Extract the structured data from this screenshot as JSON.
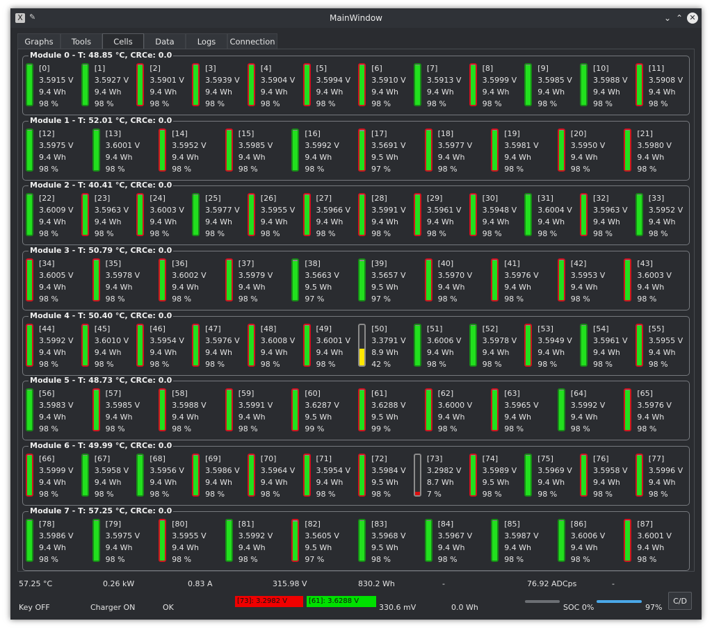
{
  "window": {
    "title": "MainWindow"
  },
  "tabs": [
    {
      "label": "Graphs"
    },
    {
      "label": "Tools"
    },
    {
      "label": "Cells",
      "active": true
    },
    {
      "label": "Data"
    },
    {
      "label": "Logs"
    },
    {
      "label": "Connection"
    }
  ],
  "modules": [
    {
      "title": "Module 0 - T: 48.85 °C, CRCe: 0.0",
      "cells": [
        {
          "id": "[0]",
          "v": "3.5915 V",
          "wh": "9.4 Wh",
          "pct": "98 %",
          "ok": true
        },
        {
          "id": "[1]",
          "v": "3.5927 V",
          "wh": "9.4 Wh",
          "pct": "98 %",
          "ok": true
        },
        {
          "id": "[2]",
          "v": "3.5901 V",
          "wh": "9.4 Wh",
          "pct": "98 %",
          "ok": false
        },
        {
          "id": "[3]",
          "v": "3.5939 V",
          "wh": "9.4 Wh",
          "pct": "98 %",
          "ok": false
        },
        {
          "id": "[4]",
          "v": "3.5904 V",
          "wh": "9.4 Wh",
          "pct": "98 %",
          "ok": false
        },
        {
          "id": "[5]",
          "v": "3.5994 V",
          "wh": "9.4 Wh",
          "pct": "98 %",
          "ok": false
        },
        {
          "id": "[6]",
          "v": "3.5910 V",
          "wh": "9.4 Wh",
          "pct": "98 %",
          "ok": false
        },
        {
          "id": "[7]",
          "v": "3.5913 V",
          "wh": "9.4 Wh",
          "pct": "98 %",
          "ok": true
        },
        {
          "id": "[8]",
          "v": "3.5999 V",
          "wh": "9.4 Wh",
          "pct": "98 %",
          "ok": false
        },
        {
          "id": "[9]",
          "v": "3.5985 V",
          "wh": "9.4 Wh",
          "pct": "98 %",
          "ok": true
        },
        {
          "id": "[10]",
          "v": "3.5988 V",
          "wh": "9.4 Wh",
          "pct": "98 %",
          "ok": true
        },
        {
          "id": "[11]",
          "v": "3.5908 V",
          "wh": "9.4 Wh",
          "pct": "98 %",
          "ok": false
        }
      ]
    },
    {
      "title": "Module 1 - T: 52.01 °C, CRCe: 0.0",
      "cells": [
        {
          "id": "[12]",
          "v": "3.5975 V",
          "wh": "9.4 Wh",
          "pct": "98 %",
          "ok": true
        },
        {
          "id": "[13]",
          "v": "3.6001 V",
          "wh": "9.4 Wh",
          "pct": "98 %",
          "ok": true
        },
        {
          "id": "[14]",
          "v": "3.5952 V",
          "wh": "9.4 Wh",
          "pct": "98 %",
          "ok": false
        },
        {
          "id": "[15]",
          "v": "3.5985 V",
          "wh": "9.4 Wh",
          "pct": "98 %",
          "ok": false
        },
        {
          "id": "[16]",
          "v": "3.5992 V",
          "wh": "9.4 Wh",
          "pct": "98 %",
          "ok": true
        },
        {
          "id": "[17]",
          "v": "3.5691 V",
          "wh": "9.5 Wh",
          "pct": "97 %",
          "ok": false
        },
        {
          "id": "[18]",
          "v": "3.5977 V",
          "wh": "9.4 Wh",
          "pct": "98 %",
          "ok": false
        },
        {
          "id": "[19]",
          "v": "3.5981 V",
          "wh": "9.4 Wh",
          "pct": "98 %",
          "ok": false
        },
        {
          "id": "[20]",
          "v": "3.5950 V",
          "wh": "9.4 Wh",
          "pct": "98 %",
          "ok": false
        },
        {
          "id": "[21]",
          "v": "3.5980 V",
          "wh": "9.4 Wh",
          "pct": "98 %",
          "ok": false
        }
      ]
    },
    {
      "title": "Module 2 - T: 40.41 °C, CRCe: 0.0",
      "cells": [
        {
          "id": "[22]",
          "v": "3.6009 V",
          "wh": "9.4 Wh",
          "pct": "98 %",
          "ok": true
        },
        {
          "id": "[23]",
          "v": "3.5963 V",
          "wh": "9.4 Wh",
          "pct": "98 %",
          "ok": false
        },
        {
          "id": "[24]",
          "v": "3.6003 V",
          "wh": "9.4 Wh",
          "pct": "98 %",
          "ok": false
        },
        {
          "id": "[25]",
          "v": "3.5977 V",
          "wh": "9.4 Wh",
          "pct": "98 %",
          "ok": true
        },
        {
          "id": "[26]",
          "v": "3.5955 V",
          "wh": "9.4 Wh",
          "pct": "98 %",
          "ok": false
        },
        {
          "id": "[27]",
          "v": "3.5966 V",
          "wh": "9.4 Wh",
          "pct": "98 %",
          "ok": false
        },
        {
          "id": "[28]",
          "v": "3.5991 V",
          "wh": "9.4 Wh",
          "pct": "98 %",
          "ok": false
        },
        {
          "id": "[29]",
          "v": "3.5961 V",
          "wh": "9.4 Wh",
          "pct": "98 %",
          "ok": false
        },
        {
          "id": "[30]",
          "v": "3.5948 V",
          "wh": "9.4 Wh",
          "pct": "98 %",
          "ok": false
        },
        {
          "id": "[31]",
          "v": "3.6004 V",
          "wh": "9.4 Wh",
          "pct": "98 %",
          "ok": true
        },
        {
          "id": "[32]",
          "v": "3.5963 V",
          "wh": "9.4 Wh",
          "pct": "98 %",
          "ok": false
        },
        {
          "id": "[33]",
          "v": "3.5952 V",
          "wh": "9.4 Wh",
          "pct": "98 %",
          "ok": true
        }
      ]
    },
    {
      "title": "Module 3 - T: 50.79 °C, CRCe: 0.0",
      "cells": [
        {
          "id": "[34]",
          "v": "3.6005 V",
          "wh": "9.4 Wh",
          "pct": "98 %",
          "ok": false
        },
        {
          "id": "[35]",
          "v": "3.5978 V",
          "wh": "9.4 Wh",
          "pct": "98 %",
          "ok": false
        },
        {
          "id": "[36]",
          "v": "3.6002 V",
          "wh": "9.4 Wh",
          "pct": "98 %",
          "ok": false
        },
        {
          "id": "[37]",
          "v": "3.5979 V",
          "wh": "9.4 Wh",
          "pct": "98 %",
          "ok": false
        },
        {
          "id": "[38]",
          "v": "3.5663 V",
          "wh": "9.5 Wh",
          "pct": "97 %",
          "ok": true
        },
        {
          "id": "[39]",
          "v": "3.5657 V",
          "wh": "9.5 Wh",
          "pct": "97 %",
          "ok": true
        },
        {
          "id": "[40]",
          "v": "3.5970 V",
          "wh": "9.4 Wh",
          "pct": "98 %",
          "ok": false
        },
        {
          "id": "[41]",
          "v": "3.5976 V",
          "wh": "9.4 Wh",
          "pct": "98 %",
          "ok": false
        },
        {
          "id": "[42]",
          "v": "3.5953 V",
          "wh": "9.4 Wh",
          "pct": "98 %",
          "ok": false
        },
        {
          "id": "[43]",
          "v": "3.6003 V",
          "wh": "9.4 Wh",
          "pct": "98 %",
          "ok": false
        }
      ]
    },
    {
      "title": "Module 4 - T: 50.40 °C, CRCe: 0.0",
      "cells": [
        {
          "id": "[44]",
          "v": "3.5992 V",
          "wh": "9.4 Wh",
          "pct": "98 %",
          "ok": false
        },
        {
          "id": "[45]",
          "v": "3.6010 V",
          "wh": "9.4 Wh",
          "pct": "98 %",
          "ok": false
        },
        {
          "id": "[46]",
          "v": "3.5954 V",
          "wh": "9.4 Wh",
          "pct": "98 %",
          "ok": false
        },
        {
          "id": "[47]",
          "v": "3.5976 V",
          "wh": "9.4 Wh",
          "pct": "98 %",
          "ok": false
        },
        {
          "id": "[48]",
          "v": "3.6008 V",
          "wh": "9.4 Wh",
          "pct": "98 %",
          "ok": false
        },
        {
          "id": "[49]",
          "v": "3.6001 V",
          "wh": "9.4 Wh",
          "pct": "98 %",
          "ok": false
        },
        {
          "id": "[50]",
          "v": "3.3791 V",
          "wh": "8.9 Wh",
          "pct": "42 %",
          "ok": false,
          "state": "low"
        },
        {
          "id": "[51]",
          "v": "3.6006 V",
          "wh": "9.4 Wh",
          "pct": "98 %",
          "ok": true
        },
        {
          "id": "[52]",
          "v": "3.5978 V",
          "wh": "9.4 Wh",
          "pct": "98 %",
          "ok": true
        },
        {
          "id": "[53]",
          "v": "3.5949 V",
          "wh": "9.4 Wh",
          "pct": "98 %",
          "ok": false
        },
        {
          "id": "[54]",
          "v": "3.5961 V",
          "wh": "9.4 Wh",
          "pct": "98 %",
          "ok": true
        },
        {
          "id": "[55]",
          "v": "3.5955 V",
          "wh": "9.4 Wh",
          "pct": "98 %",
          "ok": false
        }
      ]
    },
    {
      "title": "Module 5 - T: 48.73 °C, CRCe: 0.0",
      "cells": [
        {
          "id": "[56]",
          "v": "3.5983 V",
          "wh": "9.4 Wh",
          "pct": "98 %",
          "ok": true
        },
        {
          "id": "[57]",
          "v": "3.5985 V",
          "wh": "9.4 Wh",
          "pct": "98 %",
          "ok": false
        },
        {
          "id": "[58]",
          "v": "3.5988 V",
          "wh": "9.4 Wh",
          "pct": "98 %",
          "ok": false
        },
        {
          "id": "[59]",
          "v": "3.5991 V",
          "wh": "9.4 Wh",
          "pct": "98 %",
          "ok": false
        },
        {
          "id": "[60]",
          "v": "3.6287 V",
          "wh": "9.5 Wh",
          "pct": "99 %",
          "ok": false
        },
        {
          "id": "[61]",
          "v": "3.6288 V",
          "wh": "9.5 Wh",
          "pct": "99 %",
          "ok": false
        },
        {
          "id": "[62]",
          "v": "3.6000 V",
          "wh": "9.4 Wh",
          "pct": "98 %",
          "ok": false
        },
        {
          "id": "[63]",
          "v": "3.5965 V",
          "wh": "9.4 Wh",
          "pct": "98 %",
          "ok": false
        },
        {
          "id": "[64]",
          "v": "3.5992 V",
          "wh": "9.4 Wh",
          "pct": "98 %",
          "ok": true
        },
        {
          "id": "[65]",
          "v": "3.5976 V",
          "wh": "9.4 Wh",
          "pct": "98 %",
          "ok": false
        }
      ]
    },
    {
      "title": "Module 6 - T: 49.99 °C, CRCe: 0.0",
      "cells": [
        {
          "id": "[66]",
          "v": "3.5999 V",
          "wh": "9.4 Wh",
          "pct": "98 %",
          "ok": false
        },
        {
          "id": "[67]",
          "v": "3.5958 V",
          "wh": "9.4 Wh",
          "pct": "98 %",
          "ok": true
        },
        {
          "id": "[68]",
          "v": "3.5956 V",
          "wh": "9.4 Wh",
          "pct": "98 %",
          "ok": true
        },
        {
          "id": "[69]",
          "v": "3.5986 V",
          "wh": "9.4 Wh",
          "pct": "98 %",
          "ok": false
        },
        {
          "id": "[70]",
          "v": "3.5964 V",
          "wh": "9.4 Wh",
          "pct": "98 %",
          "ok": false
        },
        {
          "id": "[71]",
          "v": "3.5954 V",
          "wh": "9.4 Wh",
          "pct": "98 %",
          "ok": false
        },
        {
          "id": "[72]",
          "v": "3.5984 V",
          "wh": "9.5 Wh",
          "pct": "98 %",
          "ok": false
        },
        {
          "id": "[73]",
          "v": "3.2982 V",
          "wh": "8.7 Wh",
          "pct": "7 %",
          "ok": false,
          "state": "critical"
        },
        {
          "id": "[74]",
          "v": "3.5989 V",
          "wh": "9.5 Wh",
          "pct": "98 %",
          "ok": false
        },
        {
          "id": "[75]",
          "v": "3.5969 V",
          "wh": "9.4 Wh",
          "pct": "98 %",
          "ok": true
        },
        {
          "id": "[76]",
          "v": "3.5958 V",
          "wh": "9.4 Wh",
          "pct": "98 %",
          "ok": false
        },
        {
          "id": "[77]",
          "v": "3.5996 V",
          "wh": "9.4 Wh",
          "pct": "98 %",
          "ok": false
        }
      ]
    },
    {
      "title": "Module 7 - T: 57.25 °C, CRCe: 0.0",
      "cells": [
        {
          "id": "[78]",
          "v": "3.5986 V",
          "wh": "9.4 Wh",
          "pct": "98 %",
          "ok": true
        },
        {
          "id": "[79]",
          "v": "3.5975 V",
          "wh": "9.4 Wh",
          "pct": "98 %",
          "ok": true
        },
        {
          "id": "[80]",
          "v": "3.5955 V",
          "wh": "9.4 Wh",
          "pct": "98 %",
          "ok": false
        },
        {
          "id": "[81]",
          "v": "3.5992 V",
          "wh": "9.4 Wh",
          "pct": "98 %",
          "ok": true
        },
        {
          "id": "[82]",
          "v": "3.5605 V",
          "wh": "9.5 Wh",
          "pct": "97 %",
          "ok": false
        },
        {
          "id": "[83]",
          "v": "3.5968 V",
          "wh": "9.5 Wh",
          "pct": "98 %",
          "ok": true
        },
        {
          "id": "[84]",
          "v": "3.5967 V",
          "wh": "9.4 Wh",
          "pct": "98 %",
          "ok": true
        },
        {
          "id": "[85]",
          "v": "3.5987 V",
          "wh": "9.4 Wh",
          "pct": "98 %",
          "ok": true
        },
        {
          "id": "[86]",
          "v": "3.6006 V",
          "wh": "9.4 Wh",
          "pct": "98 %",
          "ok": true
        },
        {
          "id": "[87]",
          "v": "3.6001 V",
          "wh": "9.4 Wh",
          "pct": "98 %",
          "ok": false
        }
      ]
    }
  ],
  "stats": {
    "temp": "57.25 °C",
    "power": "0.26 kW",
    "current": "0.83 A",
    "voltage": "315.98 V",
    "energy": "830.2 Wh",
    "dash1": "-",
    "adc": "76.92 ADCps",
    "dash2": "-"
  },
  "status": {
    "key": "Key OFF",
    "charger": "Charger ON",
    "state": "OK",
    "min_cell": "[73]: 3.2982 V",
    "max_cell": "[61]: 3.6288 V",
    "delta": "330.6 mV",
    "balance_energy": "0.0 Wh",
    "soc_label": "SOC 0%",
    "soc_value": 0,
    "charge_label": "97%",
    "charge_value": 97,
    "cd_button": "C/D"
  },
  "colors": {
    "cell_ok_border": "#178c17",
    "cell_warn_border": "#d0141e",
    "fill_green": "#22e01e",
    "fill_yellow": "#ffe600",
    "fill_red": "#dd1010",
    "min_cell_bg": "#f00000",
    "max_cell_bg": "#00e000",
    "accent_blue": "#4aa8e8"
  },
  "icons": {
    "app": "app-logo-icon",
    "pin": "pin-icon",
    "minimize": "chevron-down-icon",
    "maximize": "chevron-up-icon",
    "close": "close-icon"
  }
}
